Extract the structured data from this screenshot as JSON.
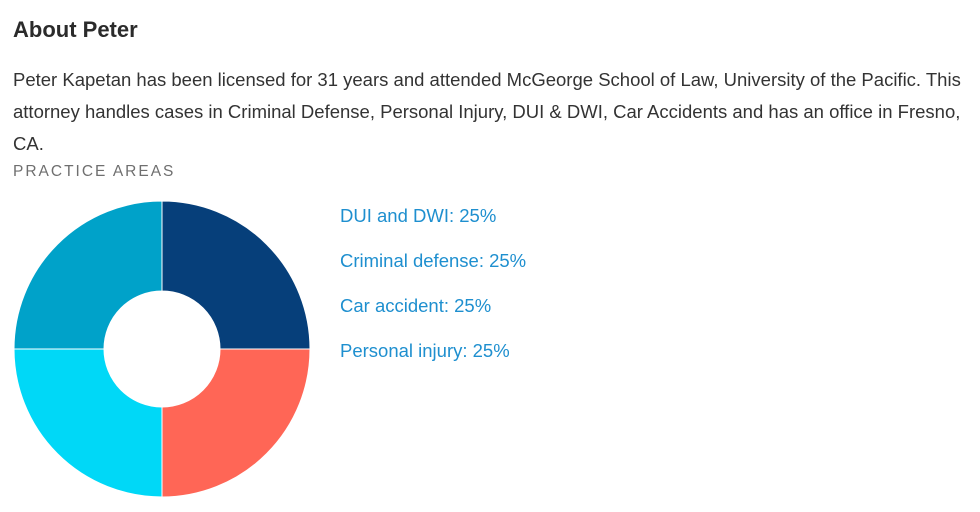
{
  "about": {
    "heading": "About Peter",
    "bio": "Peter Kapetan has been licensed for 31 years and attended McGeorge School of Law, University of the Pacific. This attorney handles cases in Criminal Defense, Personal Injury, DUI & DWI, Car Accidents and has an office in Fresno, CA."
  },
  "practice_areas": {
    "label": "PRACTICE AREAS"
  },
  "chart_data": {
    "type": "pie",
    "donut": true,
    "categories": [
      "DUI and DWI",
      "Criminal defense",
      "Car accident",
      "Personal injury"
    ],
    "values": [
      25,
      25,
      25,
      25
    ],
    "unit": "%",
    "colors": [
      "#063f7a",
      "#ff6656",
      "#00d8f7",
      "#00a2c9"
    ],
    "legend_labels": [
      "DUI and DWI: 25%",
      "Criminal defense: 25%",
      "Car accident: 25%",
      "Personal injury: 25%"
    ],
    "legend_color": "#1e8fcf",
    "legend_position": "right"
  }
}
